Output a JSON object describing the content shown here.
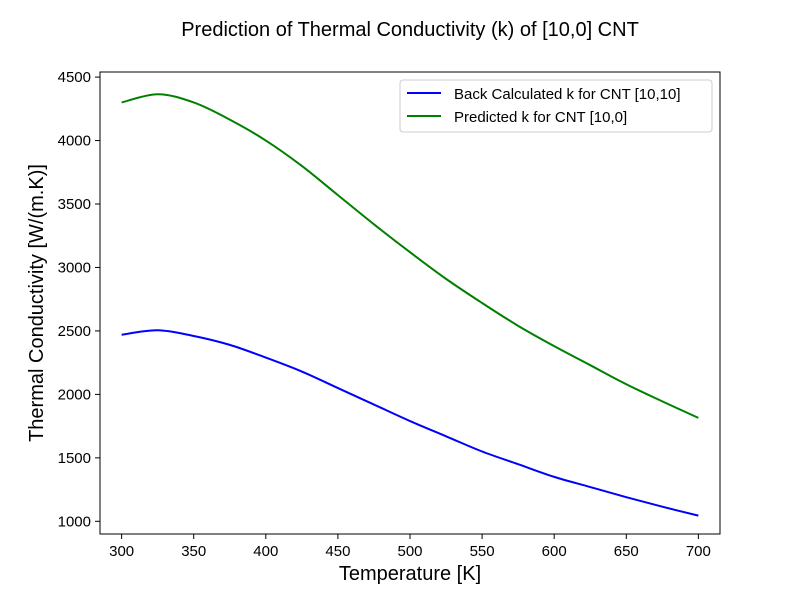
{
  "chart_data": {
    "type": "line",
    "title": "Prediction of Thermal Conductivity (k) of [10,0] CNT",
    "xlabel": "Temperature [K]",
    "ylabel": "Thermal Conductivity [W/(m.K)]",
    "xlim": [
      285,
      715
    ],
    "ylim": [
      900,
      4540
    ],
    "xticks": [
      300,
      350,
      400,
      450,
      500,
      550,
      600,
      650,
      700
    ],
    "yticks": [
      1000,
      1500,
      2000,
      2500,
      3000,
      3500,
      4000,
      4500
    ],
    "grid": false,
    "legend_position": "top-right",
    "x": [
      300,
      325,
      350,
      375,
      400,
      425,
      450,
      475,
      500,
      525,
      550,
      575,
      600,
      625,
      650,
      675,
      700
    ],
    "series": [
      {
        "name": "Back Calculated k for CNT [10,10]",
        "color": "#0000ff",
        "values": [
          2470,
          2505,
          2460,
          2390,
          2290,
          2180,
          2050,
          1920,
          1790,
          1670,
          1550,
          1450,
          1350,
          1270,
          1190,
          1115,
          1045
        ]
      },
      {
        "name": "Predicted k for CNT [10,0]",
        "color": "#008000",
        "values": [
          4300,
          4365,
          4300,
          4165,
          4000,
          3800,
          3570,
          3340,
          3120,
          2910,
          2720,
          2540,
          2380,
          2230,
          2080,
          1945,
          1815
        ]
      }
    ]
  }
}
